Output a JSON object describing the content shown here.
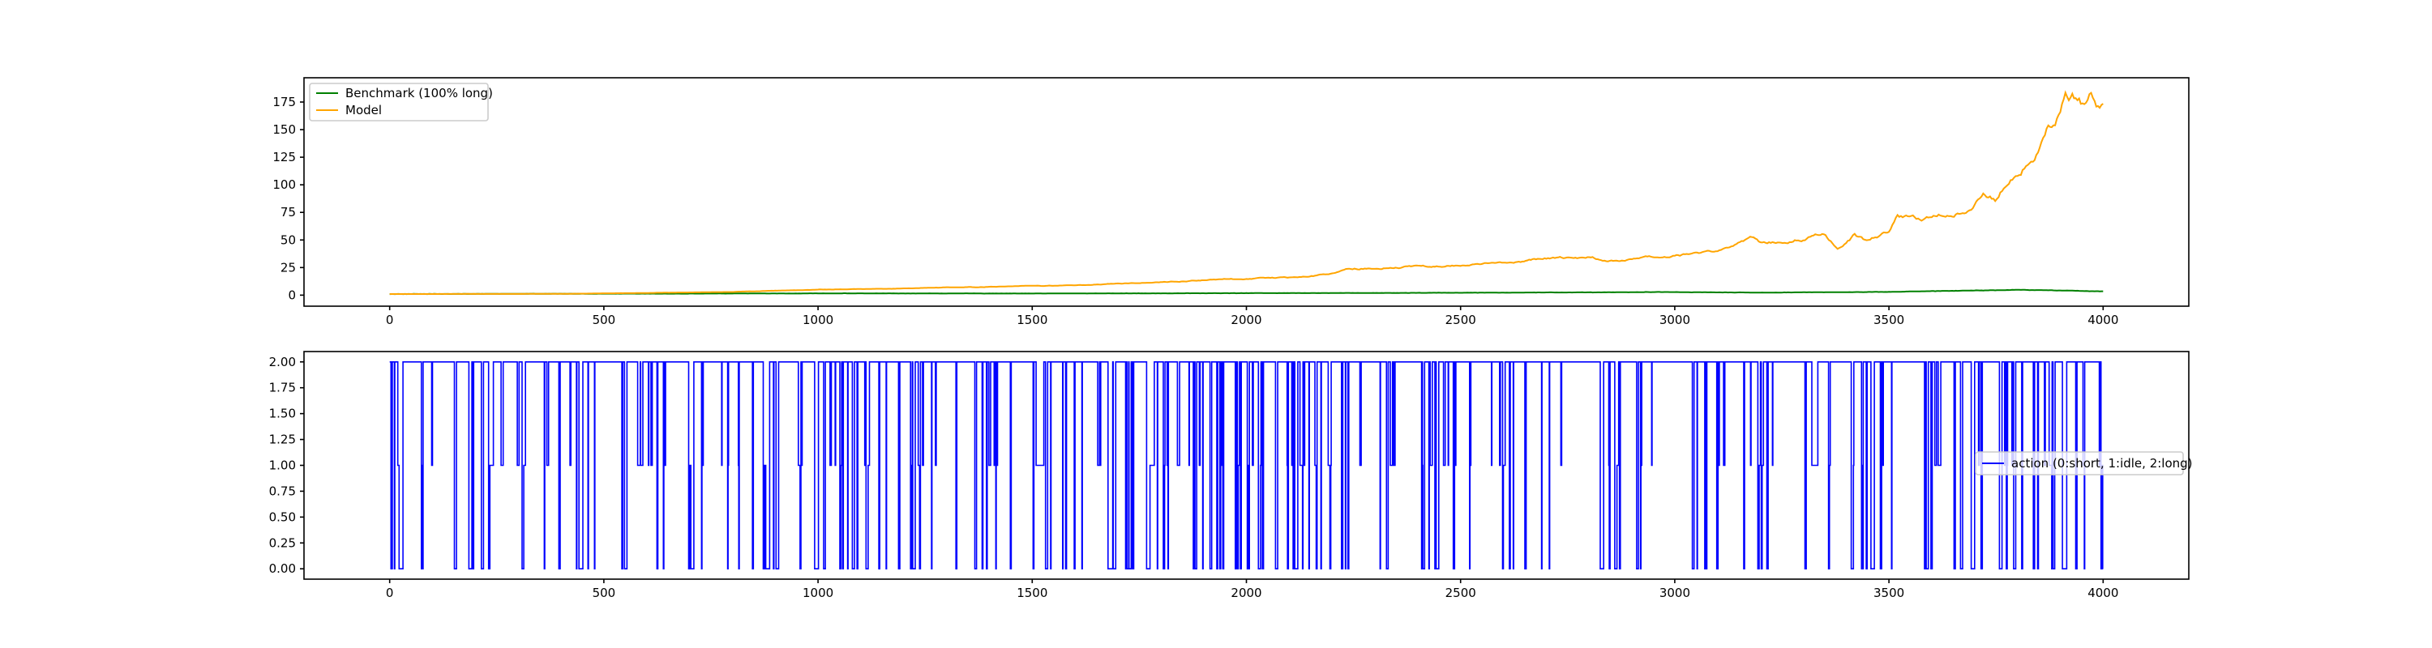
{
  "chart_data": [
    {
      "type": "line",
      "title": "",
      "xlabel": "",
      "ylabel": "",
      "xlim": [
        -200,
        4200
      ],
      "ylim": [
        -10,
        197
      ],
      "xticks": [
        0,
        500,
        1000,
        1500,
        2000,
        2500,
        3000,
        3500,
        4000
      ],
      "yticks": [
        0,
        25,
        50,
        75,
        100,
        125,
        150,
        175
      ],
      "legend_position": "top-left",
      "grid": false,
      "series": [
        {
          "name": "Benchmark (100% long)",
          "color": "#008000",
          "points": [
            [
              0,
              1
            ],
            [
              500,
              1.3
            ],
            [
              1000,
              1.6
            ],
            [
              1500,
              1.5
            ],
            [
              2000,
              1.8
            ],
            [
              2500,
              2.2
            ],
            [
              3000,
              2.8
            ],
            [
              3200,
              2.3
            ],
            [
              3500,
              3.0
            ],
            [
              3800,
              4.8
            ],
            [
              3900,
              4.2
            ],
            [
              4000,
              3.5
            ]
          ]
        },
        {
          "name": "Model",
          "color": "#ffa500",
          "points": [
            [
              0,
              1
            ],
            [
              400,
              1.2
            ],
            [
              600,
              2
            ],
            [
              800,
              3
            ],
            [
              1000,
              5
            ],
            [
              1200,
              6
            ],
            [
              1400,
              7.5
            ],
            [
              1600,
              9
            ],
            [
              1800,
              12
            ],
            [
              2000,
              15
            ],
            [
              2100,
              16
            ],
            [
              2200,
              19
            ],
            [
              2230,
              24
            ],
            [
              2400,
              26
            ],
            [
              2500,
              27
            ],
            [
              2600,
              29
            ],
            [
              2700,
              33
            ],
            [
              2800,
              34
            ],
            [
              2850,
              31
            ],
            [
              3000,
              35
            ],
            [
              3100,
              40
            ],
            [
              3150,
              48
            ],
            [
              3180,
              52
            ],
            [
              3200,
              47
            ],
            [
              3250,
              50
            ],
            [
              3300,
              52
            ],
            [
              3350,
              57
            ],
            [
              3380,
              42
            ],
            [
              3420,
              55
            ],
            [
              3450,
              48
            ],
            [
              3500,
              58
            ],
            [
              3520,
              72
            ],
            [
              3580,
              68
            ],
            [
              3620,
              72
            ],
            [
              3680,
              77
            ],
            [
              3720,
              92
            ],
            [
              3750,
              87
            ],
            [
              3780,
              105
            ],
            [
              3810,
              115
            ],
            [
              3840,
              128
            ],
            [
              3870,
              150
            ],
            [
              3890,
              160
            ],
            [
              3910,
              185
            ],
            [
              3930,
              183
            ],
            [
              3950,
              173
            ],
            [
              3970,
              182
            ],
            [
              3990,
              168
            ],
            [
              4000,
              178
            ]
          ]
        }
      ]
    },
    {
      "type": "line",
      "title": "",
      "xlabel": "",
      "ylabel": "",
      "xlim": [
        -200,
        4200
      ],
      "ylim": [
        -0.1,
        2.1
      ],
      "xticks": [
        0,
        500,
        1000,
        1500,
        2000,
        2500,
        3000,
        3500,
        4000
      ],
      "yticks": [
        "0.00",
        "0.25",
        "0.50",
        "0.75",
        "1.00",
        "1.25",
        "1.50",
        "1.75",
        "2.00"
      ],
      "legend_position": "center-right",
      "grid": false,
      "series": [
        {
          "name": "action (0:short, 1:idle, 2:long)",
          "color": "#0000ff",
          "step_values": [
            0,
            1,
            2
          ],
          "length": 4000,
          "visual_tendency": "mostly 2 (long) with frequent drops to 1 and 0"
        }
      ]
    }
  ]
}
